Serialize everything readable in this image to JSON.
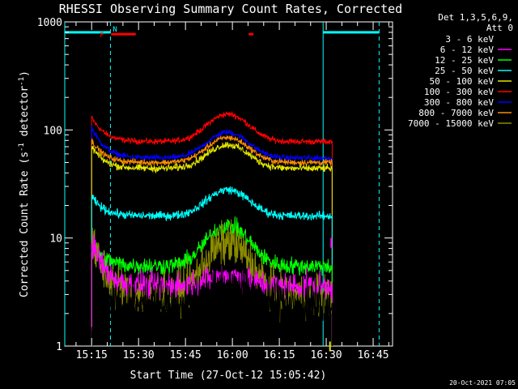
{
  "chart_data": {
    "type": "line",
    "title": "RHESSI Observing Summary Count Rates, Corrected",
    "xlabel": "Start Time (27-Oct-12 15:05:42)",
    "ylabel": "Corrected Count Rate (s⁻¹ detector⁻¹)",
    "ylabel_parts": {
      "a": "Corrected Count Rate (s",
      "sup1": "-1",
      "b": " detector",
      "sup2": "-1",
      "c": ")"
    },
    "yscale": "log",
    "ylim": [
      1,
      1000
    ],
    "xlim_min": [
      5.7,
      110.5
    ],
    "xaxis_origin": "15:05:42",
    "xticks": [
      {
        "label": "15:15",
        "min": 14.3
      },
      {
        "label": "15:30",
        "min": 29.3
      },
      {
        "label": "15:45",
        "min": 44.3
      },
      {
        "label": "16:00",
        "min": 59.3
      },
      {
        "label": "16:15",
        "min": 74.3
      },
      {
        "label": "16:30",
        "min": 89.3
      },
      {
        "label": "16:45",
        "min": 104.3
      }
    ],
    "yticks": [
      {
        "label": "1",
        "value": 1
      },
      {
        "label": "10",
        "value": 10
      },
      {
        "label": "100",
        "value": 100
      },
      {
        "label": "1000",
        "value": 1000
      }
    ],
    "legend": {
      "header1": "Det 1,3,5,6,9,",
      "header2": "Att 0",
      "position": "right"
    },
    "series": [
      {
        "name": "3 - 6 keV",
        "color": "#000000"
      },
      {
        "name": "6 - 12 keV",
        "color": "#ff00ff"
      },
      {
        "name": "12 - 25 keV",
        "color": "#00ff00"
      },
      {
        "name": "25 - 50 keV",
        "color": "#00ffff"
      },
      {
        "name": "50 - 100 keV",
        "color": "#e5e500"
      },
      {
        "name": "100 - 300 keV",
        "color": "#ff0000"
      },
      {
        "name": "300 - 800 keV",
        "color": "#0000ff"
      },
      {
        "name": "800 - 7000 keV",
        "color": "#ff8c00"
      },
      {
        "name": "7000 - 15000 keV",
        "color": "#8b8b00"
      }
    ],
    "profiles": [
      {
        "color": "#ff0000",
        "base": 78,
        "peak": 140,
        "start": 130,
        "noise": 0.04
      },
      {
        "color": "#0000ff",
        "base": 55,
        "peak": 95,
        "start": 105,
        "noise": 0.04
      },
      {
        "color": "#ff8c00",
        "base": 50,
        "peak": 85,
        "start": 80,
        "noise": 0.04
      },
      {
        "color": "#e5e500",
        "base": 44,
        "peak": 73,
        "start": 70,
        "noise": 0.05
      },
      {
        "color": "#00ffff",
        "base": 16,
        "peak": 28,
        "start": 24,
        "noise": 0.06
      },
      {
        "color": "#00ff00",
        "base": 5.5,
        "peak": 13,
        "start": 9,
        "noise": 0.12
      },
      {
        "color": "#8b8b00",
        "base": 3.0,
        "peak": 9,
        "start": 9,
        "noise": 0.3
      },
      {
        "color": "#ff00ff",
        "base": 3.6,
        "peak": 4.5,
        "start": 9,
        "noise": 0.18
      },
      {
        "color": "#000000",
        "base": 2.5,
        "peak": 3.4,
        "start": 1.5,
        "noise": 0.35
      }
    ],
    "profile_time": {
      "start": 14.3,
      "end": 91.2,
      "peak": 57.8,
      "peak_width": 8.5
    },
    "saa_periods": [
      {
        "start": 5.7,
        "end": 20.3,
        "label": "N",
        "label_color": "#00ffff"
      },
      {
        "start": 88.3,
        "end": 106.2
      }
    ],
    "flare_periods": [
      {
        "start": 20.5,
        "end": 28.4,
        "label": "F",
        "label_color": "#ff0000"
      },
      {
        "start": 64.5,
        "end": 66.0
      }
    ],
    "attenuator_marks": [
      {
        "min": 90.9,
        "value": 10,
        "color": "#ff00ff"
      },
      {
        "min": 90.5,
        "value": 1.1,
        "color": "#e5e500"
      }
    ],
    "grid": false
  },
  "footer": {
    "timestamp": "20-Oct-2021 07:05"
  },
  "colors": {
    "background": "#000000",
    "axes": "#ffffff",
    "saa": "#00ffff",
    "flare": "#ff0000"
  }
}
